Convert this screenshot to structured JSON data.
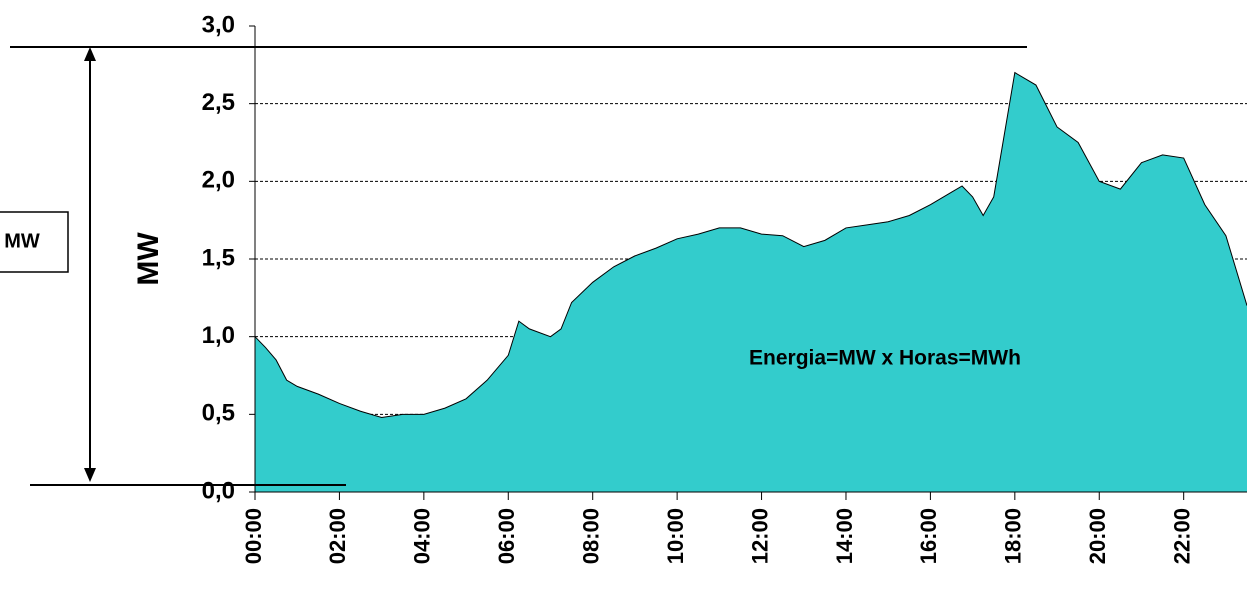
{
  "chart_data": {
    "type": "area",
    "y_label": "MW",
    "annotations": [
      "Energia=MW x Horas=MWh",
      "MW"
    ],
    "color": "#33cccc",
    "x": [
      0,
      0.25,
      0.5,
      0.75,
      1,
      1.5,
      2,
      2.5,
      3,
      3.5,
      4,
      4.5,
      5,
      5.5,
      6,
      6.25,
      6.5,
      7,
      7.25,
      7.5,
      8,
      8.5,
      9,
      9.5,
      10,
      10.5,
      11,
      11.5,
      12,
      12.5,
      13,
      13.5,
      14,
      14.5,
      15,
      15.5,
      16,
      16.5,
      16.75,
      17,
      17.25,
      17.5,
      17.75,
      18,
      18.5,
      19,
      19.5,
      20,
      20.5,
      21,
      21.5,
      22,
      22.5,
      23,
      23.5
    ],
    "values": [
      1.0,
      0.93,
      0.85,
      0.72,
      0.68,
      0.63,
      0.57,
      0.52,
      0.48,
      0.5,
      0.5,
      0.54,
      0.6,
      0.72,
      0.88,
      1.1,
      1.05,
      1.0,
      1.05,
      1.22,
      1.35,
      1.45,
      1.52,
      1.57,
      1.63,
      1.66,
      1.7,
      1.7,
      1.66,
      1.65,
      1.58,
      1.62,
      1.7,
      1.72,
      1.74,
      1.78,
      1.85,
      1.93,
      1.97,
      1.9,
      1.78,
      1.9,
      2.3,
      2.7,
      2.62,
      2.35,
      2.25,
      2.0,
      1.95,
      2.12,
      2.17,
      2.15,
      1.85,
      1.65,
      1.2
    ],
    "xlim": [
      0,
      23.5
    ],
    "xticks": [
      {
        "value": 0,
        "label": "00:00"
      },
      {
        "value": 2,
        "label": "02:00"
      },
      {
        "value": 4,
        "label": "04:00"
      },
      {
        "value": 6,
        "label": "06:00"
      },
      {
        "value": 8,
        "label": "08:00"
      },
      {
        "value": 10,
        "label": "10:00"
      },
      {
        "value": 12,
        "label": "12:00"
      },
      {
        "value": 14,
        "label": "14:00"
      },
      {
        "value": 16,
        "label": "16:00"
      },
      {
        "value": 18,
        "label": "18:00"
      },
      {
        "value": 20,
        "label": "20:00"
      },
      {
        "value": 22,
        "label": "22:00"
      }
    ],
    "ylim": [
      0,
      3
    ],
    "yticks": [
      {
        "value": 0,
        "label": "0,0"
      },
      {
        "value": 0.5,
        "label": "0,5"
      },
      {
        "value": 1,
        "label": "1,0"
      },
      {
        "value": 1.5,
        "label": "1,5"
      },
      {
        "value": 2,
        "label": "2,0"
      },
      {
        "value": 2.5,
        "label": "2,5"
      },
      {
        "value": 3,
        "label": "3,0"
      }
    ],
    "grid": true
  }
}
